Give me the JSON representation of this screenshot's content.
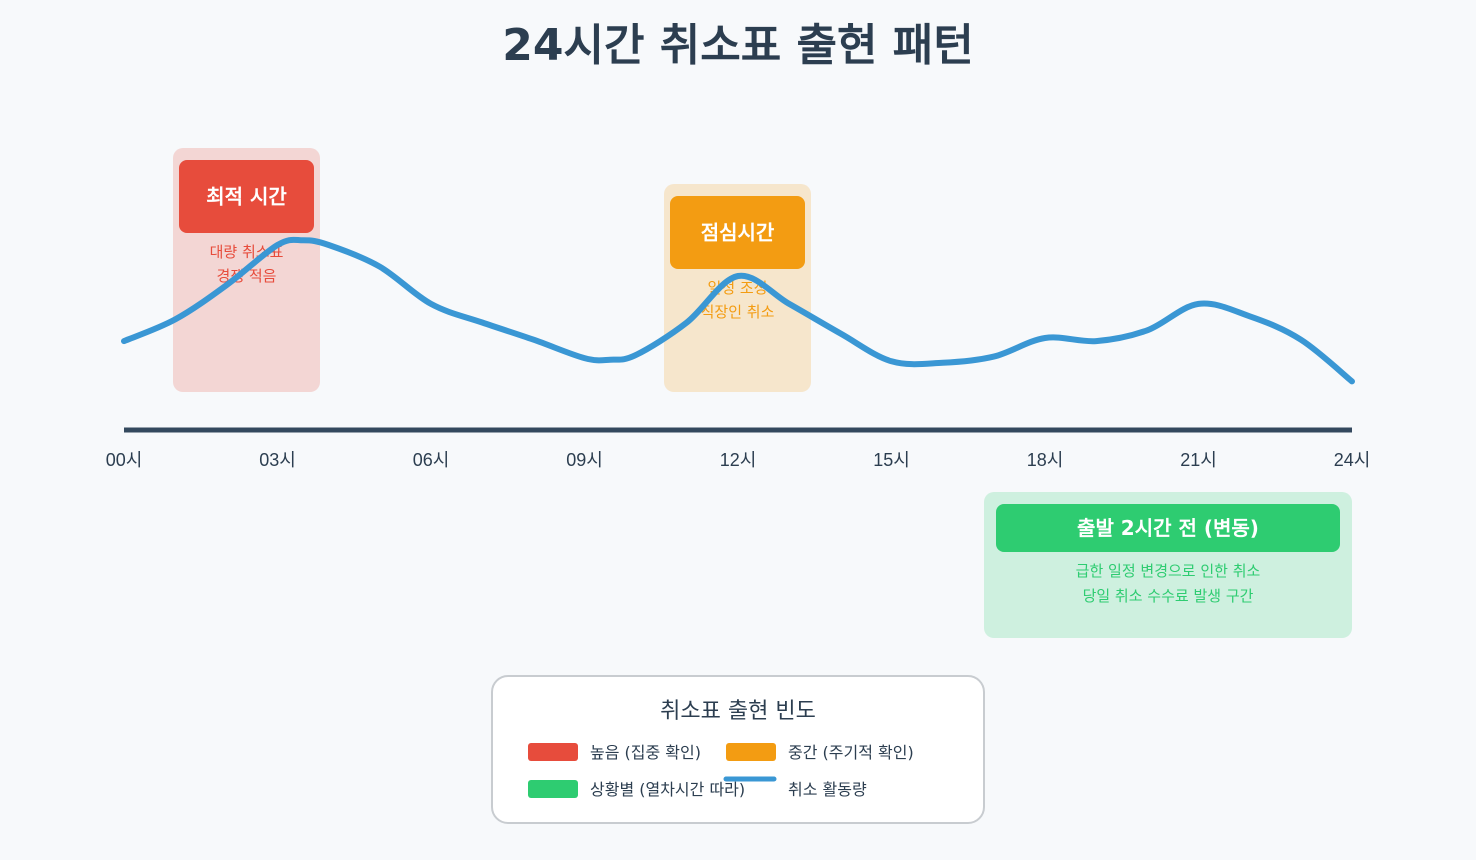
{
  "title": "24시간 취소표 출현 패턴",
  "colors": {
    "background": "#f7f9fb",
    "text": "#2c3e50",
    "axis": "#34495e",
    "line": "#3a97d4",
    "high": "#e74c3c",
    "medium": "#f39c12",
    "situational": "#2ecc71"
  },
  "chart_data": {
    "type": "line",
    "title": "24시간 취소표 출현 패턴",
    "x_ticks": [
      "00시",
      "03시",
      "06시",
      "09시",
      "12시",
      "15시",
      "18시",
      "21시",
      "24시"
    ],
    "x_range": [
      0,
      24
    ],
    "series": [
      {
        "name": "취소 활동량",
        "x": [
          0,
          1,
          2,
          3,
          3.5,
          4,
          5,
          6,
          7,
          8,
          9,
          9.5,
          10,
          11,
          12,
          13,
          14,
          15,
          16,
          17,
          18,
          19,
          20,
          21,
          22,
          23,
          24
        ],
        "y": [
          0.38,
          0.52,
          0.74,
          1.0,
          1.03,
          1.0,
          0.86,
          0.62,
          0.5,
          0.39,
          0.27,
          0.26,
          0.29,
          0.5,
          0.8,
          0.62,
          0.43,
          0.25,
          0.24,
          0.28,
          0.4,
          0.38,
          0.45,
          0.62,
          0.54,
          0.39,
          0.12
        ]
      }
    ],
    "annotations": [
      {
        "key": "optimal",
        "category": "high",
        "x_start": 0.8,
        "x_end": 3.7,
        "title": "최적 시간",
        "lines": [
          "대량 취소표",
          "경쟁 적음"
        ]
      },
      {
        "key": "lunch",
        "category": "medium",
        "x_start": 10.6,
        "x_end": 13.4,
        "title": "점심시간",
        "lines": [
          "일정 조정",
          "직장인 취소"
        ]
      },
      {
        "key": "departure",
        "category": "situational",
        "x_start": 17.3,
        "x_end": 24,
        "title": "출발 2시간 전 (변동)",
        "lines": [
          "급한 일정 변경으로 인한 취소",
          "당일 취소 수수료 발생 구간"
        ]
      }
    ],
    "legend": {
      "title": "취소표 출현 빈도",
      "placement": "bottom-center",
      "items": [
        {
          "label": "높음 (집중 확인)",
          "color": "#e74c3c",
          "kind": "box"
        },
        {
          "label": "중간 (주기적 확인)",
          "color": "#f39c12",
          "kind": "box"
        },
        {
          "label": "상황별 (열차시간 따라)",
          "color": "#2ecc71",
          "kind": "box"
        },
        {
          "label": "취소 활동량",
          "color": "#3a97d4",
          "kind": "line"
        }
      ]
    }
  }
}
